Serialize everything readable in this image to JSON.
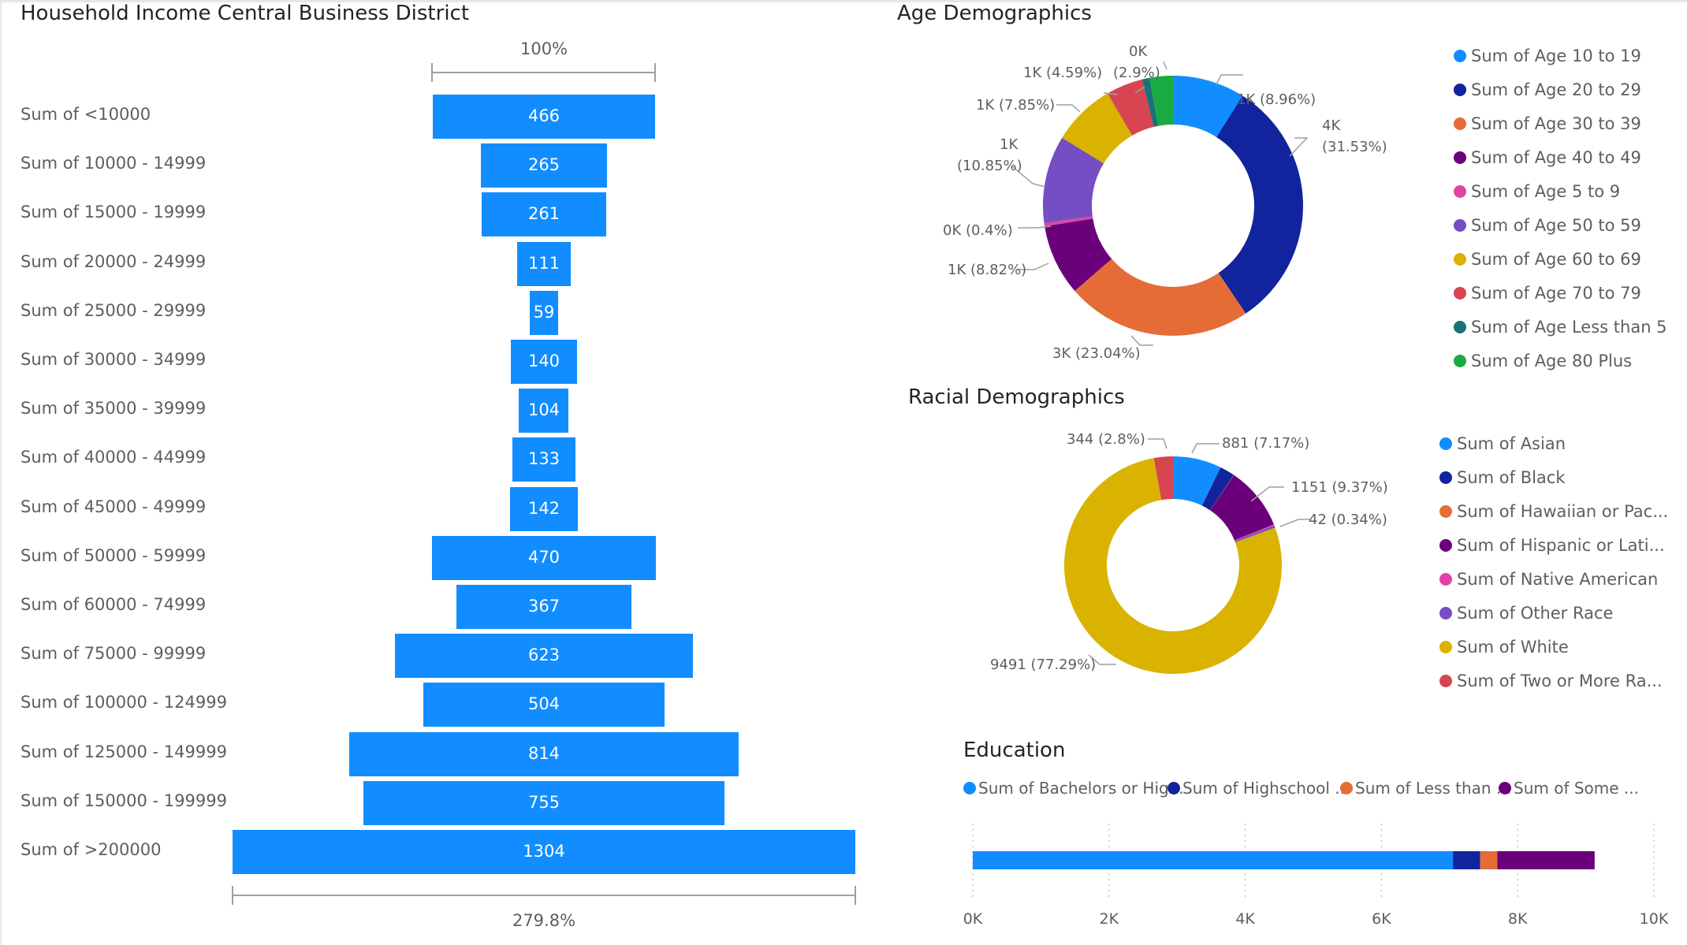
{
  "funnel": {
    "title": "Household Income Central Business District",
    "top_pct": "100%",
    "bottom_pct": "279.8%",
    "chart_data": {
      "type": "bar",
      "categories": [
        "Sum of <10000",
        "Sum of 10000 - 14999",
        "Sum of 15000 - 19999",
        "Sum of 20000 - 24999",
        "Sum of 25000 - 29999",
        "Sum of 30000 - 34999",
        "Sum of 35000 - 39999",
        "Sum of 40000 - 44999",
        "Sum of 45000 - 49999",
        "Sum of 50000 - 59999",
        "Sum of 60000 - 74999",
        "Sum of 75000 - 99999",
        "Sum of 100000 - 124999",
        "Sum of 125000 - 149999",
        "Sum of 150000 - 199999",
        "Sum of >200000"
      ],
      "values": [
        466,
        265,
        261,
        111,
        59,
        140,
        104,
        133,
        142,
        470,
        367,
        623,
        504,
        814,
        755,
        1304
      ],
      "labels": [
        "466",
        "265",
        "261",
        "111",
        "59",
        "140",
        "104",
        "133",
        "142",
        "470",
        "367",
        "623",
        "504",
        "814",
        "755",
        "1304"
      ],
      "color": "#118dff"
    }
  },
  "age": {
    "title": "Age Demographics",
    "chart_data": {
      "type": "pie",
      "series": [
        {
          "name": "Sum of Age 10 to 19",
          "percent": 8.96,
          "color": "#118dff"
        },
        {
          "name": "Sum of Age 20 to 29",
          "percent": 31.53,
          "color": "#12239e"
        },
        {
          "name": "Sum of Age 30 to 39",
          "percent": 23.04,
          "color": "#e66c37"
        },
        {
          "name": "Sum of Age 40 to 49",
          "percent": 8.82,
          "color": "#6b007b"
        },
        {
          "name": "Sum of Age 5 to 9",
          "percent": 0.4,
          "color": "#e044a7"
        },
        {
          "name": "Sum of Age 50 to 59",
          "percent": 10.85,
          "color": "#744ec2"
        },
        {
          "name": "Sum of Age 60 to 69",
          "percent": 7.85,
          "color": "#d9b300"
        },
        {
          "name": "Sum of Age 70 to 79",
          "percent": 4.59,
          "color": "#d64550"
        },
        {
          "name": "Sum of Age Less than 5",
          "percent": 0.9,
          "color": "#197278"
        },
        {
          "name": "Sum of Age 80 Plus",
          "percent": 2.9,
          "color": "#1aab40"
        }
      ]
    },
    "labels": {
      "a": "1K (8.96%)",
      "b1": "4K",
      "b2": "(31.53%)",
      "c": "3K (23.04%)",
      "d": "1K (8.82%)",
      "e": "0K (0.4%)",
      "f1": "1K",
      "f2": "(10.85%)",
      "g": "1K (7.85%)",
      "h": "1K (4.59%)",
      "i": "(2.9%)",
      "j": "0K"
    }
  },
  "race": {
    "title": "Racial Demographics",
    "chart_data": {
      "type": "pie",
      "series": [
        {
          "name": "Sum of Asian",
          "value": 881,
          "percent": 7.17,
          "color": "#118dff"
        },
        {
          "name": "Sum of Black",
          "value": 270,
          "percent": 2.2,
          "color": "#12239e"
        },
        {
          "name": "Sum of Hawaiian or Pac...",
          "value": 4,
          "percent": 0.03,
          "color": "#e66c37"
        },
        {
          "name": "Sum of Hispanic or Lati...",
          "value": 1151,
          "percent": 9.37,
          "color": "#6b007b"
        },
        {
          "name": "Sum of Native American",
          "value": 20,
          "percent": 0.16,
          "color": "#e044a7"
        },
        {
          "name": "Sum of Other Race",
          "value": 42,
          "percent": 0.34,
          "color": "#744ec2"
        },
        {
          "name": "Sum of White",
          "value": 9491,
          "percent": 77.29,
          "color": "#d9b300"
        },
        {
          "name": "Sum of Two or More Ra...",
          "value": 344,
          "percent": 2.8,
          "color": "#d64550"
        }
      ]
    },
    "labels": {
      "asian": "881 (7.17%)",
      "hispanic": "1151 (9.37%)",
      "other": "42 (0.34%)",
      "white": "9491 (77.29%)",
      "two": "344 (2.8%)"
    }
  },
  "education": {
    "title": "Education",
    "chart_data": {
      "type": "bar",
      "orientation": "horizontal-stacked",
      "series": [
        {
          "name": "Sum of Bachelors or Hig...",
          "value": 7050,
          "color": "#118dff"
        },
        {
          "name": "Sum of Highschool ...",
          "value": 400,
          "color": "#12239e"
        },
        {
          "name": "Sum of Less than ...",
          "value": 250,
          "color": "#e66c37"
        },
        {
          "name": "Sum of Some ...",
          "value": 1430,
          "color": "#6b007b"
        }
      ],
      "xlim": [
        0,
        10000
      ],
      "ticks": [
        "0K",
        "2K",
        "4K",
        "6K",
        "8K",
        "10K"
      ],
      "grid": true
    }
  }
}
